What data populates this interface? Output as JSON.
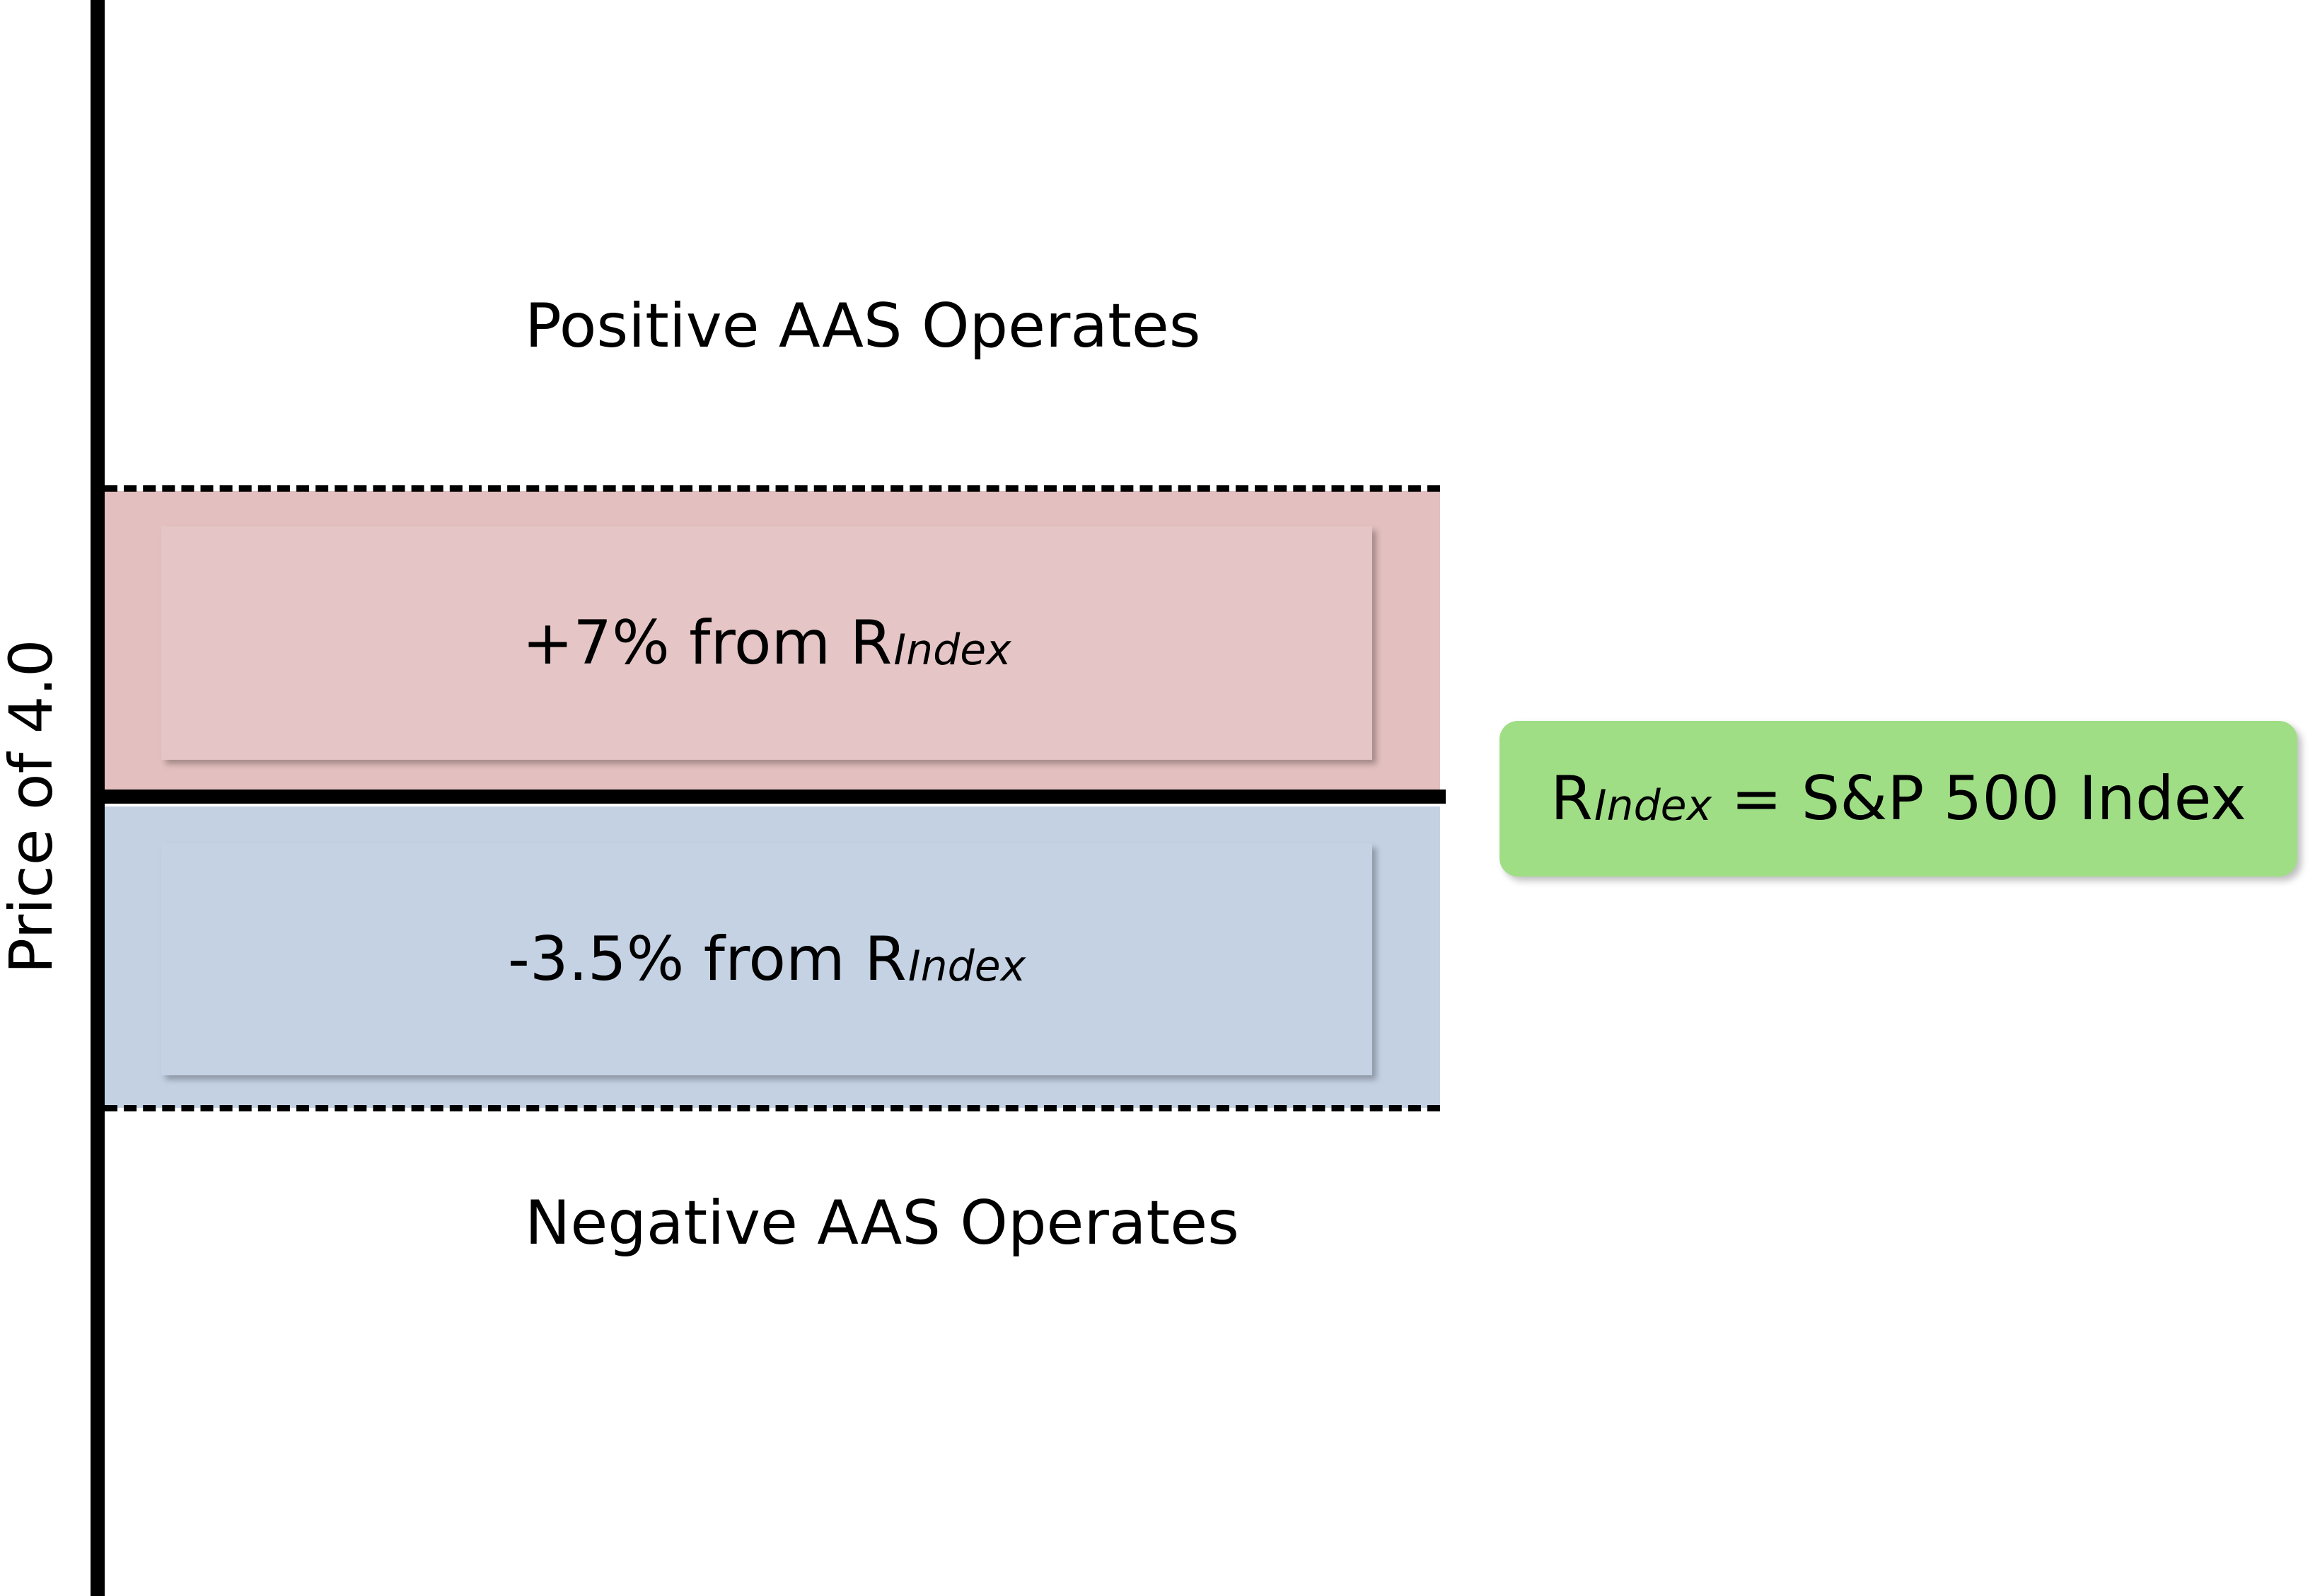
{
  "axis": {
    "y_label": "Price of 4.0"
  },
  "regions": {
    "positive": "Positive AAS Operates",
    "negative": "Negative AAS Operates"
  },
  "bands": {
    "upper": {
      "prefix": "+7% from R",
      "subscript": "Index",
      "color": "#e3bfbf"
    },
    "lower": {
      "prefix": "-3.5% from R",
      "subscript": "Index",
      "color": "#c3d1e3"
    }
  },
  "legend": {
    "symbol": "R",
    "subscript": "Index",
    "definition": " = S&P 500 Index",
    "color": "#a0de86"
  }
}
